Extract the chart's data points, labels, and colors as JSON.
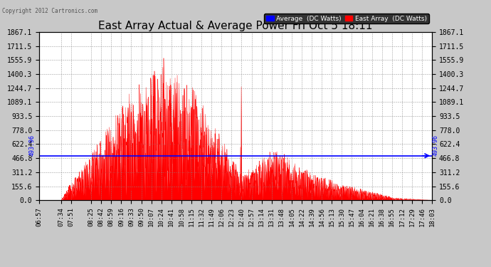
{
  "title": "East Array Actual & Average Power Fri Oct 5 18:11",
  "copyright": "Copyright 2012 Cartronics.com",
  "legend_labels": [
    "Average  (DC Watts)",
    "East Array  (DC Watts)"
  ],
  "avg_value": 493.96,
  "ymax": 1867.1,
  "ymin": 0.0,
  "yticks": [
    0.0,
    155.6,
    311.2,
    466.8,
    622.4,
    778.0,
    933.5,
    1089.1,
    1244.7,
    1400.3,
    1555.9,
    1711.5,
    1867.1
  ],
  "background_color": "#c8c8c8",
  "plot_bg": "#ffffff",
  "grid_color": "#888888",
  "fill_color": "#ff0000",
  "avg_line_color": "#0000ff",
  "title_fontsize": 11,
  "tick_fontsize": 7,
  "xtick_labels": [
    "06:57",
    "07:34",
    "07:51",
    "08:25",
    "08:42",
    "08:59",
    "09:16",
    "09:33",
    "09:50",
    "10:07",
    "10:24",
    "10:41",
    "10:58",
    "11:15",
    "11:32",
    "11:49",
    "12:06",
    "12:23",
    "12:40",
    "12:57",
    "13:14",
    "13:31",
    "13:48",
    "14:05",
    "14:22",
    "14:39",
    "14:56",
    "15:13",
    "15:30",
    "15:47",
    "16:04",
    "16:21",
    "16:38",
    "16:55",
    "17:12",
    "17:29",
    "17:46",
    "18:03"
  ]
}
